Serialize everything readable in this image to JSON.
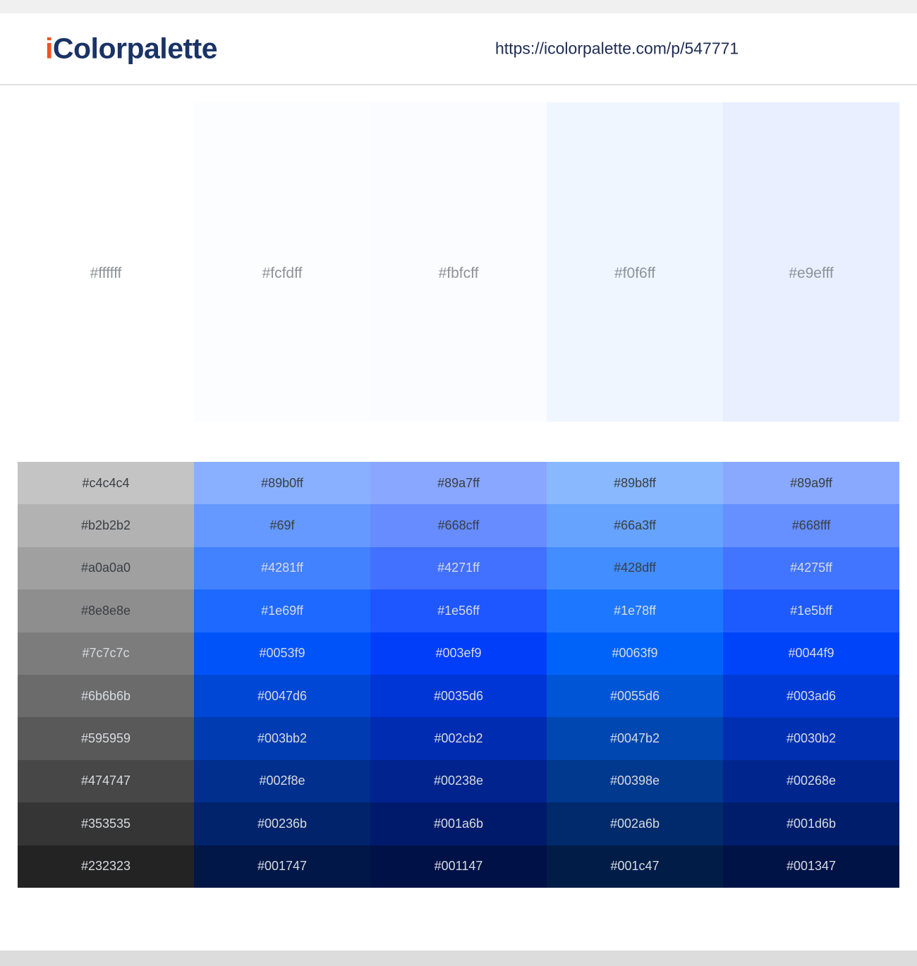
{
  "header": {
    "logo_prefix": "i",
    "logo_rest": "Colorpalette",
    "url": "https://icolorpalette.com/p/547771"
  },
  "palette": {
    "swatches": [
      "#ffffff",
      "#fcfdff",
      "#fbfcff",
      "#f0f6ff",
      "#e9efff"
    ]
  },
  "shades_grid": {
    "rows": [
      [
        "#c4c4c4",
        "#89b0ff",
        "#89a7ff",
        "#89b8ff",
        "#89a9ff"
      ],
      [
        "#b2b2b2",
        "#69f",
        "#668cff",
        "#66a3ff",
        "#668fff"
      ],
      [
        "#a0a0a0",
        "#4281ff",
        "#4271ff",
        "#428dff",
        "#4275ff"
      ],
      [
        "#8e8e8e",
        "#1e69ff",
        "#1e56ff",
        "#1e78ff",
        "#1e5bff"
      ],
      [
        "#7c7c7c",
        "#0053f9",
        "#003ef9",
        "#0063f9",
        "#0044f9"
      ],
      [
        "#6b6b6b",
        "#0047d6",
        "#0035d6",
        "#0055d6",
        "#003ad6"
      ],
      [
        "#595959",
        "#003bb2",
        "#002cb2",
        "#0047b2",
        "#0030b2"
      ],
      [
        "#474747",
        "#002f8e",
        "#00238e",
        "#00398e",
        "#00268e"
      ],
      [
        "#353535",
        "#00236b",
        "#001a6b",
        "#002a6b",
        "#001d6b"
      ],
      [
        "#232323",
        "#001747",
        "#001147",
        "#001c47",
        "#001347"
      ]
    ]
  },
  "colors": {
    "brand_orange": "#f3511e",
    "brand_navy": "#1a3366",
    "url_navy": "#1e2c52",
    "topbar_gray": "#f0f0f0",
    "divider_gray": "#e1e1e1",
    "footer_gray": "#dcdcdc",
    "swatch_label_gray": "#8d9298",
    "cell_text_dark": "#3a3f44",
    "cell_text_light": "#d7dbdf"
  }
}
